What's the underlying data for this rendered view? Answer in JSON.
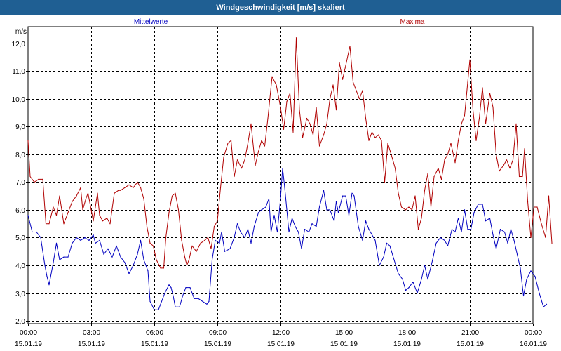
{
  "window": {
    "title": "Windgeschwindigkeit [m/s] skaliert"
  },
  "colors": {
    "mean": "#0000c0",
    "max": "#b00000",
    "grid": "#000000",
    "title_bg": "#1f5f93"
  },
  "chart_data": {
    "type": "line",
    "ylabel": "m/s",
    "ylim": [
      1.9,
      12.6
    ],
    "yticks": [
      2.0,
      3.0,
      4.0,
      5.0,
      6.0,
      7.0,
      8.0,
      9.0,
      10.0,
      11.0,
      12.0
    ],
    "ytick_labels": [
      "2,0",
      "3,0",
      "4,0",
      "5,0",
      "6,0",
      "7,0",
      "8,0",
      "9,0",
      "10,0",
      "11,0",
      "12,0"
    ],
    "xlim_hours": [
      0,
      24
    ],
    "xticks": [
      {
        "hour": 0,
        "time": "00:00",
        "date": "15.01.19"
      },
      {
        "hour": 3,
        "time": "03:00",
        "date": "15.01.19"
      },
      {
        "hour": 6,
        "time": "06:00",
        "date": "15.01.19"
      },
      {
        "hour": 9,
        "time": "09:00",
        "date": "15.01.19"
      },
      {
        "hour": 12,
        "time": "12:00",
        "date": "15.01.19"
      },
      {
        "hour": 15,
        "time": "15:00",
        "date": "15.01.19"
      },
      {
        "hour": 18,
        "time": "18:00",
        "date": "15.01.19"
      },
      {
        "hour": 21,
        "time": "21:00",
        "date": "15.01.19"
      },
      {
        "hour": 24,
        "time": "00:00",
        "date": "16.01.19"
      }
    ],
    "grid": true,
    "series": [
      {
        "name": "Mittelwerte",
        "color": "#0000c0",
        "points": [
          [
            0,
            5.8
          ],
          [
            0.2,
            5.2
          ],
          [
            0.4,
            5.2
          ],
          [
            0.6,
            5.0
          ],
          [
            0.8,
            4.0
          ],
          [
            0.9,
            3.6
          ],
          [
            1.0,
            3.3
          ],
          [
            1.2,
            4.1
          ],
          [
            1.35,
            4.8
          ],
          [
            1.5,
            4.2
          ],
          [
            1.7,
            4.3
          ],
          [
            1.9,
            4.3
          ],
          [
            2.1,
            4.8
          ],
          [
            2.3,
            5.0
          ],
          [
            2.5,
            4.9
          ],
          [
            2.7,
            5.0
          ],
          [
            2.9,
            4.9
          ],
          [
            3.1,
            5.1
          ],
          [
            3.2,
            4.8
          ],
          [
            3.4,
            4.9
          ],
          [
            3.6,
            4.4
          ],
          [
            3.8,
            4.6
          ],
          [
            4.0,
            4.3
          ],
          [
            4.2,
            4.7
          ],
          [
            4.4,
            4.3
          ],
          [
            4.6,
            4.1
          ],
          [
            4.8,
            3.7
          ],
          [
            5.0,
            4.0
          ],
          [
            5.2,
            4.4
          ],
          [
            5.35,
            4.9
          ],
          [
            5.5,
            4.2
          ],
          [
            5.7,
            3.8
          ],
          [
            5.8,
            2.7
          ],
          [
            6.0,
            2.4
          ],
          [
            6.2,
            2.4
          ],
          [
            6.3,
            2.6
          ],
          [
            6.5,
            3.0
          ],
          [
            6.7,
            3.3
          ],
          [
            6.8,
            3.2
          ],
          [
            6.9,
            2.9
          ],
          [
            7.0,
            2.5
          ],
          [
            7.2,
            2.5
          ],
          [
            7.35,
            2.9
          ],
          [
            7.5,
            3.2
          ],
          [
            7.7,
            3.2
          ],
          [
            7.9,
            2.8
          ],
          [
            8.1,
            2.8
          ],
          [
            8.3,
            2.7
          ],
          [
            8.5,
            2.6
          ],
          [
            8.6,
            2.7
          ],
          [
            8.75,
            4.2
          ],
          [
            8.9,
            4.9
          ],
          [
            9.1,
            4.8
          ],
          [
            9.2,
            5.2
          ],
          [
            9.35,
            4.5
          ],
          [
            9.6,
            4.6
          ],
          [
            9.8,
            5.0
          ],
          [
            9.95,
            5.5
          ],
          [
            10.1,
            5.2
          ],
          [
            10.3,
            5.0
          ],
          [
            10.45,
            5.3
          ],
          [
            10.6,
            4.8
          ],
          [
            10.75,
            5.4
          ],
          [
            10.95,
            5.9
          ],
          [
            11.1,
            6.0
          ],
          [
            11.3,
            6.1
          ],
          [
            11.45,
            6.4
          ],
          [
            11.55,
            5.2
          ],
          [
            11.7,
            5.8
          ],
          [
            11.85,
            5.2
          ],
          [
            12.0,
            6.4
          ],
          [
            12.1,
            7.5
          ],
          [
            12.2,
            6.8
          ],
          [
            12.4,
            5.2
          ],
          [
            12.55,
            5.7
          ],
          [
            12.7,
            5.4
          ],
          [
            12.85,
            5.2
          ],
          [
            13.0,
            4.6
          ],
          [
            13.15,
            5.3
          ],
          [
            13.35,
            5.2
          ],
          [
            13.5,
            5.5
          ],
          [
            13.7,
            5.4
          ],
          [
            13.85,
            6.1
          ],
          [
            14.05,
            6.7
          ],
          [
            14.2,
            6.0
          ],
          [
            14.35,
            6.0
          ],
          [
            14.55,
            5.6
          ],
          [
            14.65,
            6.3
          ],
          [
            14.75,
            5.9
          ],
          [
            14.95,
            6.5
          ],
          [
            15.1,
            6.5
          ],
          [
            15.25,
            5.8
          ],
          [
            15.4,
            6.6
          ],
          [
            15.5,
            6.5
          ],
          [
            15.7,
            5.4
          ],
          [
            15.9,
            4.9
          ],
          [
            16.05,
            5.6
          ],
          [
            16.2,
            5.3
          ],
          [
            16.35,
            5.1
          ],
          [
            16.5,
            4.9
          ],
          [
            16.7,
            4.0
          ],
          [
            16.9,
            4.3
          ],
          [
            17.05,
            4.8
          ],
          [
            17.2,
            4.7
          ],
          [
            17.4,
            4.2
          ],
          [
            17.6,
            3.7
          ],
          [
            17.8,
            3.5
          ],
          [
            17.95,
            3.1
          ],
          [
            18.1,
            3.2
          ],
          [
            18.3,
            3.4
          ],
          [
            18.5,
            3.0
          ],
          [
            18.7,
            3.5
          ],
          [
            18.85,
            4.0
          ],
          [
            19.0,
            3.5
          ],
          [
            19.2,
            4.1
          ],
          [
            19.4,
            4.8
          ],
          [
            19.6,
            5.0
          ],
          [
            19.8,
            4.9
          ],
          [
            19.95,
            4.7
          ],
          [
            20.15,
            5.3
          ],
          [
            20.3,
            5.2
          ],
          [
            20.45,
            5.7
          ],
          [
            20.6,
            5.2
          ],
          [
            20.75,
            6.0
          ],
          [
            20.9,
            5.3
          ],
          [
            21.05,
            5.3
          ],
          [
            21.2,
            5.9
          ],
          [
            21.4,
            6.2
          ],
          [
            21.6,
            6.2
          ],
          [
            21.75,
            5.6
          ],
          [
            21.95,
            5.7
          ],
          [
            22.1,
            5.1
          ],
          [
            22.25,
            4.6
          ],
          [
            22.45,
            5.3
          ],
          [
            22.65,
            5.2
          ],
          [
            22.8,
            4.8
          ],
          [
            22.95,
            5.3
          ],
          [
            23.1,
            4.9
          ],
          [
            23.25,
            4.4
          ],
          [
            23.4,
            3.9
          ],
          [
            23.55,
            2.9
          ],
          [
            23.7,
            3.5
          ],
          [
            23.9,
            3.8
          ],
          [
            24.1,
            3.6
          ],
          [
            24.3,
            3.0
          ],
          [
            24.5,
            2.5
          ],
          [
            24.65,
            2.6
          ]
        ]
      },
      {
        "name": "Maxima",
        "color": "#b00000",
        "points": [
          [
            0,
            8.5
          ],
          [
            0.1,
            7.2
          ],
          [
            0.3,
            7.0
          ],
          [
            0.5,
            7.1
          ],
          [
            0.7,
            7.1
          ],
          [
            0.85,
            5.5
          ],
          [
            1.0,
            5.5
          ],
          [
            1.2,
            6.1
          ],
          [
            1.35,
            5.8
          ],
          [
            1.5,
            6.5
          ],
          [
            1.7,
            5.5
          ],
          [
            1.9,
            5.9
          ],
          [
            2.1,
            6.3
          ],
          [
            2.3,
            6.5
          ],
          [
            2.5,
            6.8
          ],
          [
            2.6,
            6.0
          ],
          [
            2.75,
            6.4
          ],
          [
            2.85,
            6.6
          ],
          [
            3.0,
            6.0
          ],
          [
            3.1,
            5.6
          ],
          [
            3.3,
            6.6
          ],
          [
            3.4,
            5.8
          ],
          [
            3.55,
            5.6
          ],
          [
            3.75,
            5.7
          ],
          [
            3.9,
            5.5
          ],
          [
            4.1,
            6.6
          ],
          [
            4.3,
            6.7
          ],
          [
            4.4,
            6.7
          ],
          [
            4.6,
            6.8
          ],
          [
            4.8,
            6.9
          ],
          [
            5.0,
            6.8
          ],
          [
            5.2,
            7.0
          ],
          [
            5.35,
            6.8
          ],
          [
            5.5,
            6.4
          ],
          [
            5.65,
            5.4
          ],
          [
            5.8,
            4.8
          ],
          [
            5.95,
            4.7
          ],
          [
            6.1,
            4.2
          ],
          [
            6.3,
            3.9
          ],
          [
            6.45,
            3.9
          ],
          [
            6.55,
            5.0
          ],
          [
            6.7,
            5.9
          ],
          [
            6.85,
            6.5
          ],
          [
            7.0,
            6.6
          ],
          [
            7.15,
            6.0
          ],
          [
            7.3,
            4.9
          ],
          [
            7.45,
            4.3
          ],
          [
            7.55,
            4.0
          ],
          [
            7.65,
            4.2
          ],
          [
            7.8,
            4.7
          ],
          [
            8.0,
            4.5
          ],
          [
            8.2,
            4.8
          ],
          [
            8.4,
            4.9
          ],
          [
            8.55,
            5.0
          ],
          [
            8.7,
            4.6
          ],
          [
            8.85,
            5.4
          ],
          [
            9.0,
            5.6
          ],
          [
            9.15,
            6.8
          ],
          [
            9.3,
            7.9
          ],
          [
            9.5,
            8.4
          ],
          [
            9.65,
            8.5
          ],
          [
            9.8,
            7.2
          ],
          [
            9.95,
            7.8
          ],
          [
            10.15,
            7.5
          ],
          [
            10.3,
            7.8
          ],
          [
            10.45,
            8.4
          ],
          [
            10.6,
            9.1
          ],
          [
            10.8,
            7.6
          ],
          [
            10.95,
            8.1
          ],
          [
            11.1,
            8.5
          ],
          [
            11.25,
            8.3
          ],
          [
            11.4,
            9.3
          ],
          [
            11.6,
            10.8
          ],
          [
            11.8,
            10.5
          ],
          [
            12.0,
            9.7
          ],
          [
            12.15,
            8.9
          ],
          [
            12.3,
            9.9
          ],
          [
            12.45,
            10.2
          ],
          [
            12.6,
            8.8
          ],
          [
            12.75,
            12.2
          ],
          [
            12.9,
            9.6
          ],
          [
            13.05,
            8.6
          ],
          [
            13.25,
            9.3
          ],
          [
            13.4,
            9.1
          ],
          [
            13.55,
            8.7
          ],
          [
            13.7,
            9.7
          ],
          [
            13.85,
            8.3
          ],
          [
            14.05,
            8.7
          ],
          [
            14.2,
            9.1
          ],
          [
            14.35,
            10.0
          ],
          [
            14.5,
            10.5
          ],
          [
            14.65,
            9.6
          ],
          [
            14.8,
            11.3
          ],
          [
            14.95,
            10.7
          ],
          [
            15.1,
            11.2
          ],
          [
            15.3,
            11.9
          ],
          [
            15.45,
            10.6
          ],
          [
            15.6,
            10.3
          ],
          [
            15.75,
            10.0
          ],
          [
            15.9,
            10.3
          ],
          [
            16.05,
            9.3
          ],
          [
            16.2,
            8.5
          ],
          [
            16.35,
            8.8
          ],
          [
            16.5,
            8.6
          ],
          [
            16.65,
            8.7
          ],
          [
            16.8,
            8.5
          ],
          [
            16.95,
            7.0
          ],
          [
            17.1,
            8.4
          ],
          [
            17.3,
            7.9
          ],
          [
            17.45,
            7.5
          ],
          [
            17.6,
            6.6
          ],
          [
            17.75,
            6.1
          ],
          [
            17.95,
            6.0
          ],
          [
            18.1,
            6.1
          ],
          [
            18.25,
            6.0
          ],
          [
            18.4,
            6.5
          ],
          [
            18.55,
            5.3
          ],
          [
            18.7,
            5.7
          ],
          [
            18.85,
            6.7
          ],
          [
            19.0,
            7.3
          ],
          [
            19.15,
            6.1
          ],
          [
            19.3,
            7.2
          ],
          [
            19.5,
            7.5
          ],
          [
            19.65,
            7.1
          ],
          [
            19.8,
            7.8
          ],
          [
            19.95,
            8.0
          ],
          [
            20.1,
            8.4
          ],
          [
            20.3,
            7.7
          ],
          [
            20.45,
            8.5
          ],
          [
            20.6,
            9.1
          ],
          [
            20.75,
            9.4
          ],
          [
            20.9,
            10.6
          ],
          [
            21.0,
            11.4
          ],
          [
            21.15,
            9.6
          ],
          [
            21.3,
            8.5
          ],
          [
            21.45,
            9.3
          ],
          [
            21.6,
            10.4
          ],
          [
            21.75,
            9.1
          ],
          [
            21.95,
            10.2
          ],
          [
            22.1,
            9.7
          ],
          [
            22.25,
            8.0
          ],
          [
            22.4,
            7.4
          ],
          [
            22.6,
            7.6
          ],
          [
            22.75,
            7.8
          ],
          [
            22.9,
            7.5
          ],
          [
            23.05,
            7.8
          ],
          [
            23.2,
            9.1
          ],
          [
            23.35,
            7.2
          ],
          [
            23.5,
            7.2
          ],
          [
            23.6,
            8.2
          ],
          [
            23.75,
            6.3
          ],
          [
            23.9,
            5.0
          ],
          [
            24.05,
            6.1
          ],
          [
            24.2,
            6.1
          ],
          [
            24.4,
            5.5
          ],
          [
            24.6,
            5.0
          ],
          [
            24.75,
            6.5
          ],
          [
            24.9,
            4.8
          ]
        ]
      }
    ]
  }
}
